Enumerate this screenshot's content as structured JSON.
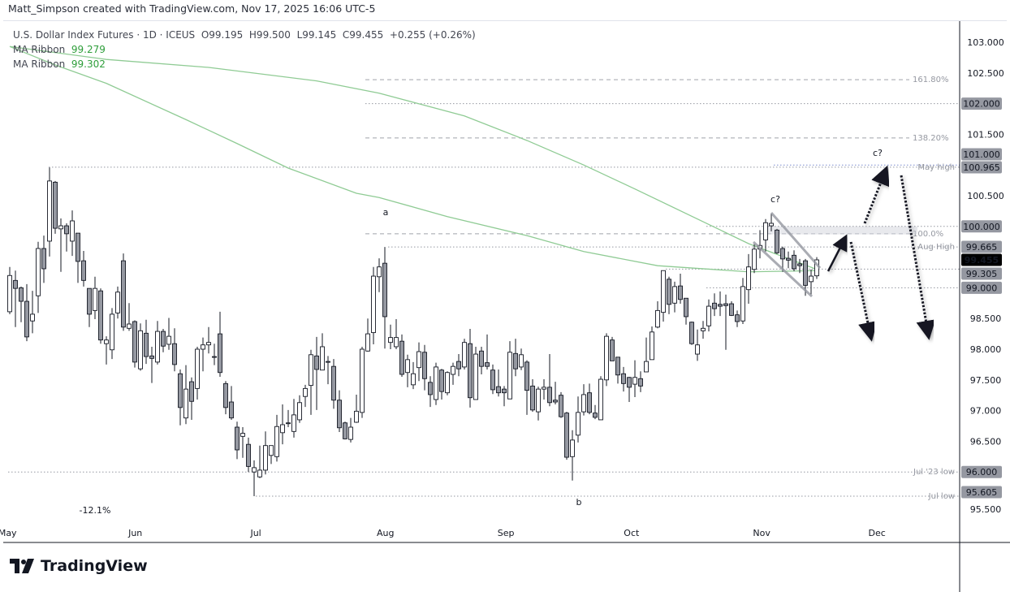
{
  "credit": "Matt_Simpson created with TradingView.com, Nov 17, 2025 16:06 UTC-5",
  "legend": {
    "symbol": "U.S. Dollar Index Futures · 1D · ICEUS",
    "open": "O99.195",
    "high": "H99.500",
    "low": "L99.145",
    "close": "C99.455",
    "change": "+0.255 (+0.26%)",
    "ma": [
      {
        "name": "MA Ribbon",
        "value": "99.279"
      },
      {
        "name": "MA Ribbon",
        "value": "99.302"
      }
    ]
  },
  "logo": {
    "text": "TradingView",
    "icon": "tradingview-logo-icon"
  },
  "colors": {
    "up_fill": "#ffffff",
    "down_fill": "#9598a1",
    "wick": "#131722",
    "ma": "#8fcb94",
    "axis_box": "#9598a1",
    "last_price_box": "#000000"
  },
  "chart_data": {
    "type": "candlestick",
    "title": "U.S. Dollar Index Futures · 1D · ICEUS",
    "period": {
      "start": "May 2025",
      "end": "Nov 17, 2025"
    },
    "ylim": [
      95.5,
      103.0
    ],
    "grid": false,
    "x_tick_labels": [
      "May",
      "Jun",
      "Jul",
      "Aug",
      "Sep",
      "Oct",
      "Nov",
      "Dec"
    ],
    "y_tick_labels": [
      "103.000",
      "102.500",
      "101.500",
      "100.500",
      "98.500",
      "98.000",
      "97.500",
      "97.000",
      "96.500",
      "95.500"
    ],
    "y_ticks": [
      103.0,
      102.5,
      101.5,
      100.5,
      98.5,
      98.0,
      97.5,
      97.0,
      96.5,
      95.5
    ],
    "ohlc_fields": [
      "open",
      "high",
      "low",
      "close"
    ],
    "candles": [
      [
        98.61,
        99.34,
        98.57,
        99.2
      ],
      [
        99.12,
        99.28,
        98.36,
        98.99
      ],
      [
        99.0,
        99.02,
        98.44,
        98.78
      ],
      [
        98.78,
        99.06,
        98.13,
        98.2
      ],
      [
        98.46,
        98.95,
        98.26,
        98.57
      ],
      [
        98.87,
        99.75,
        98.59,
        99.64
      ],
      [
        99.64,
        99.85,
        99.08,
        99.31
      ],
      [
        99.76,
        100.96,
        99.51,
        100.74
      ],
      [
        100.72,
        100.74,
        99.88,
        99.97
      ],
      [
        99.96,
        100.13,
        99.26,
        100.01
      ],
      [
        100.01,
        100.05,
        99.59,
        99.88
      ],
      [
        99.76,
        100.26,
        99.52,
        100.09
      ],
      [
        99.89,
        99.89,
        99.08,
        99.43
      ],
      [
        99.44,
        99.6,
        99.02,
        99.12
      ],
      [
        98.99,
        98.99,
        98.36,
        98.57
      ],
      [
        98.63,
        99.18,
        98.49,
        98.99
      ],
      [
        98.95,
        98.99,
        98.09,
        98.15
      ],
      [
        98.09,
        98.21,
        97.75,
        98.15
      ],
      [
        97.99,
        98.67,
        97.84,
        98.57
      ],
      [
        98.59,
        99.02,
        98.5,
        98.93
      ],
      [
        99.44,
        99.56,
        98.3,
        98.36
      ],
      [
        98.34,
        98.75,
        98.3,
        98.41
      ],
      [
        98.45,
        98.47,
        97.7,
        97.79
      ],
      [
        97.68,
        98.42,
        97.65,
        98.3
      ],
      [
        98.26,
        98.48,
        97.76,
        97.88
      ],
      [
        97.89,
        98.04,
        97.45,
        97.85
      ],
      [
        97.79,
        98.46,
        97.75,
        98.29
      ],
      [
        98.29,
        98.33,
        97.95,
        98.05
      ],
      [
        98.08,
        98.51,
        97.99,
        98.21
      ],
      [
        98.09,
        98.34,
        97.64,
        97.75
      ],
      [
        97.6,
        97.67,
        96.76,
        97.05
      ],
      [
        96.88,
        97.74,
        96.78,
        97.35
      ],
      [
        97.47,
        97.54,
        96.85,
        97.15
      ],
      [
        97.36,
        98.04,
        97.18,
        98.0
      ],
      [
        98.0,
        98.19,
        97.64,
        98.07
      ],
      [
        98.07,
        98.36,
        97.93,
        98.11
      ],
      [
        97.88,
        98.09,
        97.74,
        97.88
      ],
      [
        98.25,
        98.61,
        97.55,
        97.62
      ],
      [
        97.44,
        97.48,
        96.94,
        97.05
      ],
      [
        97.14,
        97.4,
        96.85,
        96.88
      ],
      [
        96.73,
        96.82,
        96.21,
        96.36
      ],
      [
        96.58,
        96.73,
        96.23,
        96.63
      ],
      [
        96.45,
        96.56,
        96.0,
        96.09
      ],
      [
        96.0,
        96.19,
        95.605,
        96.07
      ],
      [
        95.92,
        96.43,
        95.9,
        96.03
      ],
      [
        96.03,
        96.66,
        95.96,
        96.43
      ],
      [
        96.27,
        96.43,
        96.13,
        96.43
      ],
      [
        96.25,
        96.93,
        96.17,
        96.74
      ],
      [
        96.64,
        97.1,
        96.45,
        96.77
      ],
      [
        96.8,
        97.01,
        96.73,
        96.8
      ],
      [
        96.66,
        97.19,
        96.56,
        96.93
      ],
      [
        96.85,
        97.25,
        96.8,
        97.13
      ],
      [
        97.23,
        97.42,
        97.06,
        97.36
      ],
      [
        97.41,
        97.99,
        96.93,
        97.91
      ],
      [
        97.89,
        98.2,
        97.01,
        97.67
      ],
      [
        97.66,
        98.26,
        97.66,
        98.04
      ],
      [
        97.8,
        97.89,
        97.43,
        97.8
      ],
      [
        97.72,
        97.84,
        97.03,
        97.17
      ],
      [
        97.17,
        97.33,
        96.65,
        96.72
      ],
      [
        96.8,
        96.82,
        96.53,
        96.54
      ],
      [
        96.53,
        96.88,
        96.48,
        96.73
      ],
      [
        96.81,
        97.26,
        96.8,
        96.99
      ],
      [
        96.97,
        98.04,
        96.88,
        98.0
      ],
      [
        97.97,
        98.5,
        97.96,
        98.25
      ],
      [
        98.27,
        99.34,
        98.08,
        99.19
      ],
      [
        99.18,
        99.48,
        98.93,
        99.34
      ],
      [
        99.4,
        99.665,
        98.01,
        98.53
      ],
      [
        98.11,
        98.4,
        98.0,
        98.19
      ],
      [
        98.04,
        98.49,
        98.0,
        98.19
      ],
      [
        98.13,
        98.24,
        97.55,
        97.59
      ],
      [
        97.62,
        97.91,
        97.38,
        97.83
      ],
      [
        97.42,
        97.79,
        97.35,
        97.6
      ],
      [
        97.7,
        98.11,
        97.48,
        97.96
      ],
      [
        97.95,
        98.07,
        97.33,
        97.52
      ],
      [
        97.46,
        97.56,
        97.06,
        97.26
      ],
      [
        97.18,
        97.78,
        97.09,
        97.71
      ],
      [
        97.66,
        97.68,
        97.18,
        97.31
      ],
      [
        97.29,
        97.64,
        97.25,
        97.62
      ],
      [
        97.59,
        97.78,
        97.42,
        97.72
      ],
      [
        97.8,
        97.92,
        97.56,
        97.68
      ],
      [
        97.71,
        98.17,
        97.67,
        98.11
      ],
      [
        98.09,
        98.33,
        97.05,
        97.21
      ],
      [
        97.18,
        98.04,
        97.18,
        97.92
      ],
      [
        97.97,
        98.04,
        97.59,
        97.72
      ],
      [
        97.78,
        98.24,
        97.67,
        97.72
      ],
      [
        97.66,
        97.75,
        97.27,
        97.34
      ],
      [
        97.39,
        97.67,
        97.23,
        97.29
      ],
      [
        97.35,
        97.4,
        97.07,
        97.29
      ],
      [
        97.19,
        98.13,
        97.19,
        97.95
      ],
      [
        97.93,
        98.17,
        97.56,
        97.68
      ],
      [
        97.71,
        98.01,
        97.66,
        97.91
      ],
      [
        97.79,
        97.82,
        96.93,
        97.33
      ],
      [
        97.4,
        97.51,
        96.98,
        97.01
      ],
      [
        96.98,
        97.39,
        96.84,
        97.35
      ],
      [
        97.35,
        97.51,
        97.18,
        97.38
      ],
      [
        97.38,
        97.92,
        97.07,
        97.13
      ],
      [
        97.17,
        97.47,
        97.1,
        97.14
      ],
      [
        97.25,
        97.3,
        96.88,
        96.9
      ],
      [
        96.96,
        96.98,
        96.2,
        96.24
      ],
      [
        96.25,
        96.68,
        95.86,
        96.52
      ],
      [
        96.6,
        97.23,
        96.48,
        96.97
      ],
      [
        96.98,
        97.43,
        96.92,
        97.26
      ],
      [
        97.29,
        97.44,
        96.94,
        96.97
      ],
      [
        96.96,
        97.09,
        96.86,
        96.89
      ],
      [
        96.85,
        97.56,
        96.85,
        97.51
      ],
      [
        97.5,
        98.26,
        97.4,
        98.21
      ],
      [
        98.15,
        98.2,
        97.81,
        97.81
      ],
      [
        97.87,
        97.87,
        97.44,
        97.58
      ],
      [
        97.6,
        97.71,
        97.31,
        97.44
      ],
      [
        97.54,
        97.55,
        97.14,
        97.38
      ],
      [
        97.43,
        97.82,
        97.22,
        97.54
      ],
      [
        97.52,
        97.64,
        97.3,
        97.4
      ],
      [
        97.63,
        98.19,
        97.63,
        97.8
      ],
      [
        97.83,
        98.37,
        97.83,
        98.28
      ],
      [
        98.36,
        98.78,
        98.34,
        98.63
      ],
      [
        98.6,
        99.28,
        98.45,
        99.28
      ],
      [
        99.14,
        99.18,
        98.57,
        98.73
      ],
      [
        98.75,
        99.1,
        98.6,
        99.02
      ],
      [
        99.03,
        99.23,
        98.74,
        98.81
      ],
      [
        98.83,
        98.83,
        98.4,
        98.53
      ],
      [
        98.44,
        98.45,
        98.07,
        98.09
      ],
      [
        97.92,
        98.32,
        97.81,
        98.07
      ],
      [
        98.3,
        98.46,
        98.17,
        98.34
      ],
      [
        98.38,
        98.81,
        98.29,
        98.7
      ],
      [
        98.75,
        98.91,
        98.54,
        98.66
      ],
      [
        98.73,
        98.94,
        98.54,
        98.7
      ],
      [
        98.74,
        98.89,
        97.99,
        98.71
      ],
      [
        98.74,
        98.78,
        98.54,
        98.55
      ],
      [
        98.56,
        98.63,
        98.36,
        98.45
      ],
      [
        98.46,
        99.16,
        98.41,
        99.02
      ],
      [
        98.97,
        99.55,
        98.74,
        99.34
      ],
      [
        99.3,
        99.71,
        99.24,
        99.63
      ],
      [
        99.63,
        99.94,
        99.48,
        99.69
      ],
      [
        99.78,
        100.12,
        99.59,
        100.06
      ],
      [
        100.01,
        100.21,
        99.92,
        100.05
      ],
      [
        99.94,
        99.96,
        99.55,
        99.57
      ],
      [
        99.64,
        99.67,
        99.26,
        99.47
      ],
      [
        99.48,
        99.59,
        99.32,
        99.45
      ],
      [
        99.53,
        99.61,
        99.27,
        99.31
      ],
      [
        99.39,
        99.47,
        99.24,
        99.36
      ],
      [
        99.44,
        99.47,
        98.87,
        99.04
      ],
      [
        99.1,
        99.3,
        98.89,
        99.19
      ],
      [
        99.195,
        99.5,
        99.145,
        99.455
      ]
    ],
    "ma_ribbon": [
      {
        "name": "MA Ribbon",
        "last": "99.279",
        "bar_price": [
          [
            0,
            102.93
          ],
          [
            8,
            102.63
          ],
          [
            17,
            102.33
          ],
          [
            31,
            101.74
          ],
          [
            40,
            101.35
          ],
          [
            49,
            100.95
          ],
          [
            61,
            100.54
          ],
          [
            65,
            100.47
          ],
          [
            77,
            100.16
          ],
          [
            91,
            99.85
          ],
          [
            101,
            99.59
          ],
          [
            114,
            99.36
          ],
          [
            130,
            99.26
          ],
          [
            142,
            99.28
          ]
        ]
      },
      {
        "name": "MA Ribbon",
        "last": "99.302",
        "bar_price": [
          [
            0,
            102.93
          ],
          [
            17,
            102.72
          ],
          [
            35,
            102.59
          ],
          [
            54,
            102.37
          ],
          [
            65,
            102.17
          ],
          [
            80,
            101.8
          ],
          [
            91,
            101.4
          ],
          [
            101,
            101.0
          ],
          [
            110,
            100.61
          ],
          [
            119,
            100.21
          ],
          [
            130,
            99.72
          ],
          [
            142,
            99.3
          ]
        ]
      }
    ],
    "fib_levels": [
      {
        "label": "161.80%",
        "price": 102.39
      },
      {
        "label": "138.20%",
        "price": 101.44
      },
      {
        "label": "100.0%",
        "price": 99.88
      }
    ],
    "levels": [
      {
        "price": 102.0,
        "axis_label": "102.000",
        "label": ""
      },
      {
        "price": 101.0,
        "axis_label": "101.000",
        "label": ""
      },
      {
        "price": 100.965,
        "axis_label": "100.965",
        "label": "May high"
      },
      {
        "price": 100.0,
        "axis_label": "100.000",
        "label": ""
      },
      {
        "price": 99.665,
        "axis_label": "99.665",
        "label": "Aug High"
      },
      {
        "price": 99.305,
        "axis_label": "99.305",
        "label": ""
      },
      {
        "price": 99.0,
        "axis_label": "99.000",
        "label": ""
      },
      {
        "price": 96.0,
        "axis_label": "96.000",
        "label": "Jul '23 low"
      },
      {
        "price": 95.605,
        "axis_label": "95.605",
        "label": "Jul low"
      }
    ],
    "last_price": {
      "price": 99.455,
      "axis_label": "99.455"
    },
    "annotations": [
      "a",
      "b",
      "c?",
      "c?",
      "-12.1%"
    ]
  }
}
